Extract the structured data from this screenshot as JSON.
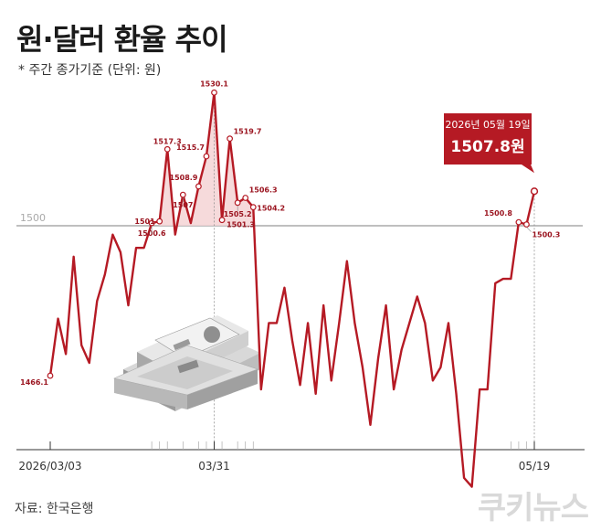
{
  "header": {
    "title": "원·달러 환율 추이",
    "subtitle": "* 주간 종가기준 (단위: 원)"
  },
  "footer": {
    "source": "자료: 한국은행",
    "brand": "쿠키뉴스"
  },
  "callout": {
    "date": "2026년 05월 19일",
    "value": "1507.8원"
  },
  "colors": {
    "line": "#b51a24",
    "highlight_fill": "#f4d3d5",
    "callout_bg": "#b51a24",
    "reference_line": "#555555",
    "axis": "#333333"
  },
  "chart_data": {
    "type": "line",
    "x_tick_labels": [
      "2026/03/03",
      "03/31",
      "05/19"
    ],
    "reference_line": {
      "value": 1500,
      "label": "1500"
    },
    "series": [
      {
        "values": [
          1466.1,
          1479,
          1471,
          1493,
          1473,
          1469,
          1483,
          1489,
          1498,
          1494,
          1482,
          1495,
          1495,
          1500.6,
          1501,
          1517.3,
          1498,
          1507,
          1500.6,
          1508.9,
          1515.7,
          1530.1,
          1501.3,
          1519.7,
          1505.2,
          1506.3,
          1504.2,
          1463,
          1478,
          1478,
          1486,
          1474,
          1464,
          1478,
          1462,
          1482,
          1465,
          1478,
          1492,
          1478,
          1468,
          1455,
          1470,
          1482,
          1463,
          1472,
          1478,
          1484,
          1478,
          1465,
          1468,
          1478,
          1462,
          1443,
          1441,
          1463,
          1463,
          1487,
          1488,
          1488,
          1500.8,
          1500.3,
          1507.8
        ]
      }
    ],
    "point_labels": [
      {
        "i": 0,
        "text": "1466.1"
      },
      {
        "i": 13,
        "text": "1500.6"
      },
      {
        "i": 14,
        "text": "1501"
      },
      {
        "i": 15,
        "text": "1517.3"
      },
      {
        "i": 17,
        "text": "1507"
      },
      {
        "i": 19,
        "text": "1508.9"
      },
      {
        "i": 20,
        "text": "1515.7"
      },
      {
        "i": 21,
        "text": "1530.1"
      },
      {
        "i": 22,
        "text": "1501.3"
      },
      {
        "i": 23,
        "text": "1519.7"
      },
      {
        "i": 24,
        "text": "1505.2"
      },
      {
        "i": 25,
        "text": "1506.3"
      },
      {
        "i": 26,
        "text": "1504.2"
      },
      {
        "i": 60,
        "text": "1500.8"
      },
      {
        "i": 61,
        "text": "1500.3"
      }
    ],
    "highlight_range": [
      14,
      26
    ],
    "callout_point": 62,
    "major_ticks": [
      0,
      21,
      62
    ],
    "minor_ticks": [
      13,
      14,
      15,
      17,
      19,
      20,
      22,
      24,
      25,
      26,
      59,
      60,
      61
    ]
  }
}
